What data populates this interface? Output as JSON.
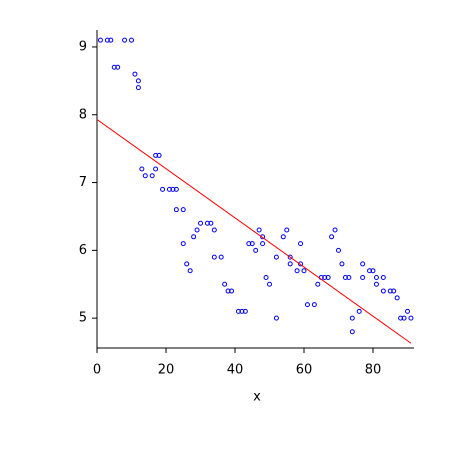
{
  "chart_data": {
    "type": "scatter",
    "x_label": "x",
    "x": [
      1,
      3,
      4,
      5,
      6,
      8,
      10,
      11,
      12,
      12,
      13,
      14,
      16,
      17,
      17,
      18,
      19,
      21,
      22,
      23,
      23,
      25,
      25,
      26,
      27,
      28,
      29,
      30,
      32,
      33,
      34,
      34,
      36,
      37,
      38,
      39,
      41,
      42,
      43,
      44,
      45,
      46,
      47,
      48,
      48,
      49,
      50,
      52,
      52,
      54,
      55,
      56,
      56,
      58,
      59,
      59,
      60,
      61,
      63,
      64,
      65,
      66,
      67,
      68,
      69,
      70,
      71,
      72,
      73,
      74,
      74,
      76,
      77,
      77,
      79,
      80,
      81,
      81,
      83,
      83,
      85,
      86,
      87,
      88,
      89,
      90,
      91
    ],
    "y": [
      9.1,
      9.1,
      9.1,
      8.7,
      8.7,
      9.1,
      9.1,
      8.6,
      8.5,
      8.4,
      7.2,
      7.1,
      7.1,
      7.2,
      7.4,
      7.4,
      6.9,
      6.9,
      6.9,
      6.9,
      6.6,
      6.6,
      6.1,
      5.8,
      5.7,
      6.2,
      6.3,
      6.4,
      6.4,
      6.4,
      6.3,
      5.9,
      5.9,
      5.5,
      5.4,
      5.4,
      5.1,
      5.1,
      5.1,
      6.1,
      6.1,
      6.0,
      6.3,
      6.2,
      6.1,
      5.6,
      5.5,
      5.0,
      5.9,
      6.2,
      6.3,
      5.8,
      5.9,
      5.7,
      6.1,
      5.8,
      5.7,
      5.2,
      5.2,
      5.5,
      5.6,
      5.6,
      5.6,
      6.2,
      6.3,
      6.0,
      5.8,
      5.6,
      5.6,
      5.0,
      4.8,
      5.1,
      5.6,
      5.8,
      5.7,
      5.7,
      5.6,
      5.5,
      5.4,
      5.6,
      5.4,
      5.4,
      5.3,
      5.0,
      5.0,
      5.1,
      5.0
    ],
    "color": "#0000ff",
    "fit": {
      "x": [
        0,
        91
      ],
      "y": [
        7.93,
        4.63
      ],
      "color": "#ff0000"
    },
    "xlim": [
      0,
      92
    ],
    "ylim": [
      4.56,
      9.25
    ],
    "xticks": [
      0,
      20,
      40,
      60,
      80
    ],
    "yticks": [
      5,
      6,
      7,
      8,
      9
    ]
  }
}
